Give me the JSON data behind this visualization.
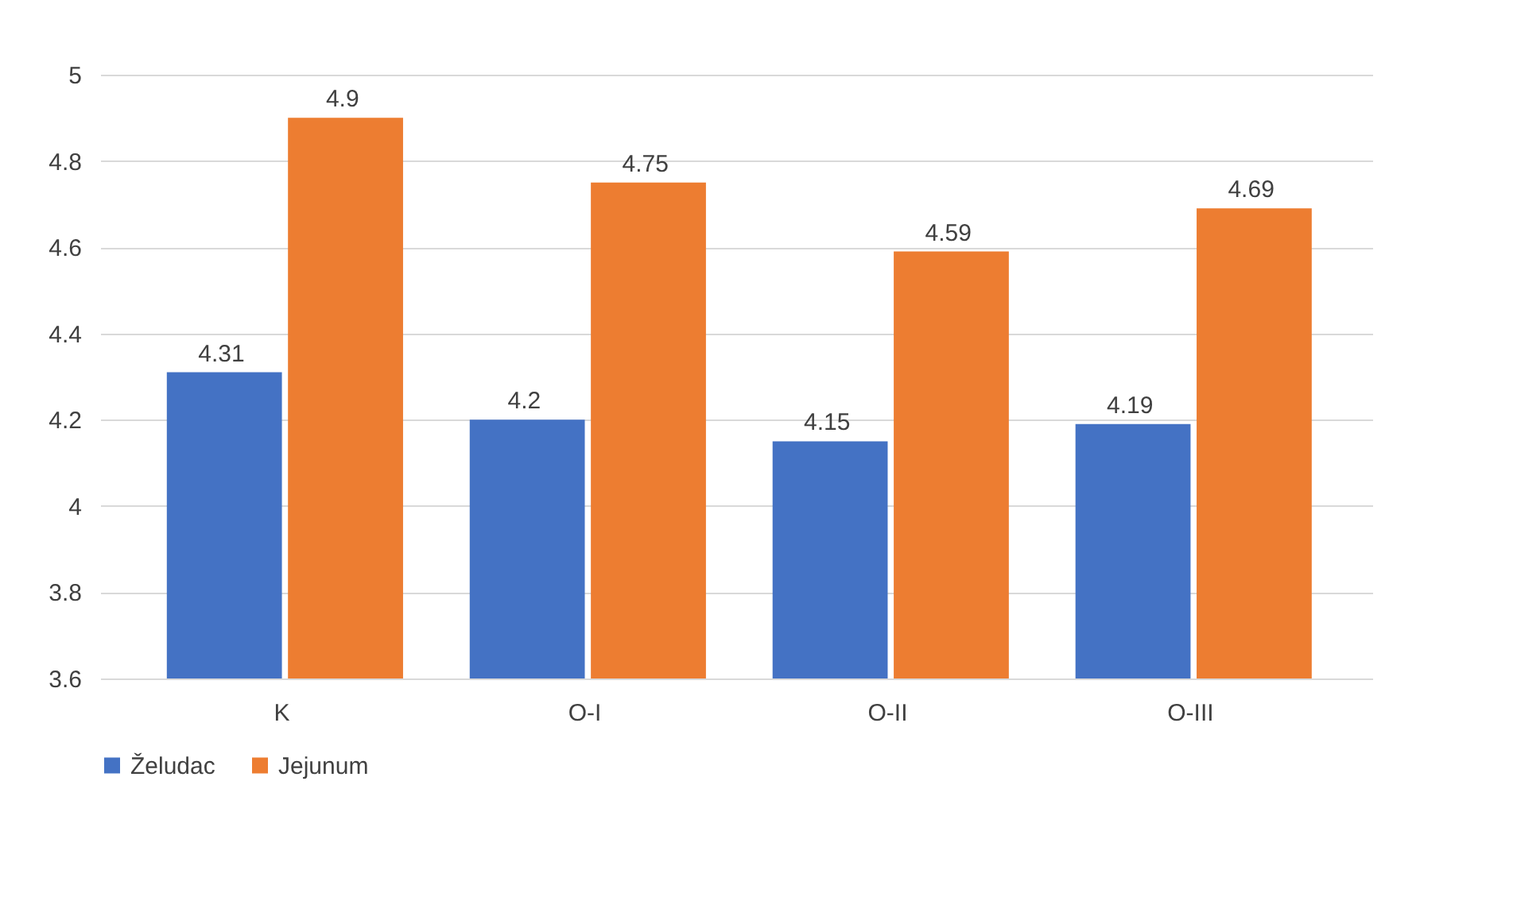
{
  "chart_data": {
    "type": "bar",
    "categories": [
      "K",
      "O-I",
      "O-II",
      "O-III"
    ],
    "series": [
      {
        "name": "Želudac",
        "color": "#4472c4",
        "values": [
          4.31,
          4.2,
          4.15,
          4.19
        ]
      },
      {
        "name": "Jejunum",
        "color": "#ed7d31",
        "values": [
          4.9,
          4.75,
          4.59,
          4.69
        ]
      }
    ],
    "ylim": [
      3.6,
      5
    ],
    "yticks": [
      3.6,
      3.8,
      4,
      4.2,
      4.4,
      4.6,
      4.8,
      5
    ],
    "grid": "y",
    "legend": "bottom",
    "data_labels": true
  }
}
